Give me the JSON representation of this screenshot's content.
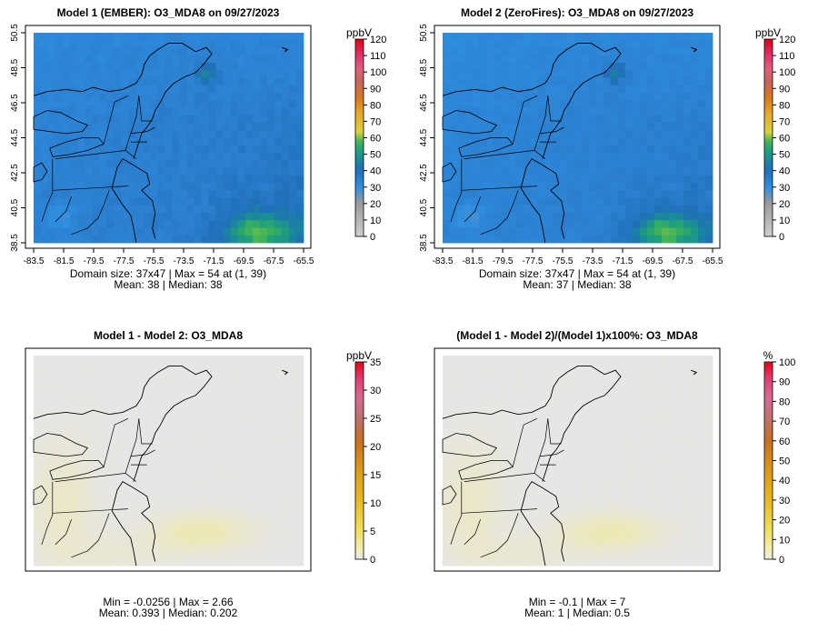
{
  "chart_data": [
    {
      "type": "heatmap",
      "title": "Model 1 (EMBER): O3_MDA8 on 09/27/2023",
      "xticks": [
        "-83.5",
        "-81.5",
        "-79.5",
        "-77.5",
        "-75.5",
        "-73.5",
        "-71.5",
        "-69.5",
        "-67.5",
        "-65.5"
      ],
      "yticks": [
        "38.5",
        "40.5",
        "42.5",
        "44.5",
        "46.5",
        "48.5",
        "50.5"
      ],
      "colorbar": {
        "unit": "ppbV",
        "ticks": [
          "0",
          "10",
          "20",
          "30",
          "40",
          "50",
          "60",
          "70",
          "80",
          "90",
          "100",
          "110",
          "120"
        ],
        "vmin": 0,
        "vmax": 120
      },
      "caption": [
        "Domain size: 37x47 | Max = 54 at (1, 39)",
        "Mean: 38 |  Median: 38"
      ],
      "field": {
        "kind": "ozone",
        "base": 38,
        "high": 54,
        "low": 31
      }
    },
    {
      "type": "heatmap",
      "title": "Model 2 (ZeroFires): O3_MDA8 on 09/27/2023",
      "xticks": [
        "-83.5",
        "-81.5",
        "-79.5",
        "-77.5",
        "-75.5",
        "-73.5",
        "-71.5",
        "-69.5",
        "-67.5",
        "-65.5"
      ],
      "yticks": [
        "38.5",
        "40.5",
        "42.5",
        "44.5",
        "46.5",
        "48.5",
        "50.5"
      ],
      "colorbar": {
        "unit": "ppbV",
        "ticks": [
          "0",
          "10",
          "20",
          "30",
          "40",
          "50",
          "60",
          "70",
          "80",
          "90",
          "100",
          "110",
          "120"
        ],
        "vmin": 0,
        "vmax": 120
      },
      "caption": [
        "Domain size: 37x47 | Max = 54 at (1, 39)",
        "Mean: 37 |  Median: 38"
      ],
      "field": {
        "kind": "ozone",
        "base": 37,
        "high": 54,
        "low": 30
      }
    },
    {
      "type": "heatmap",
      "title": "Model 1 - Model 2: O3_MDA8",
      "colorbar": {
        "unit": "ppbV",
        "ticks": [
          "0",
          "5",
          "10",
          "15",
          "20",
          "25",
          "30",
          "35"
        ],
        "vmin": 0,
        "vmax": 35
      },
      "caption": [
        "Min = -0.0256 | Max = 2.66",
        "Mean: 0.393 |  Median: 0.202"
      ],
      "field": {
        "kind": "diff",
        "min": -0.0256,
        "max": 2.66
      }
    },
    {
      "type": "heatmap",
      "title": "(Model 1 - Model 2)/(Model 1)x100%: O3_MDA8",
      "colorbar": {
        "unit": "%",
        "ticks": [
          "0",
          "10",
          "20",
          "30",
          "40",
          "50",
          "60",
          "70",
          "80",
          "90",
          "100"
        ],
        "vmin": 0,
        "vmax": 100
      },
      "caption": [
        "Min = -0.1 | Max = 7",
        "Mean: 1 |  Median: 0.5"
      ],
      "field": {
        "kind": "diff",
        "min": -0.1,
        "max": 7
      }
    }
  ],
  "colors": {
    "frame": "#000000",
    "grid_neutral": "#e6e6e6",
    "map_lines": "#000000"
  }
}
